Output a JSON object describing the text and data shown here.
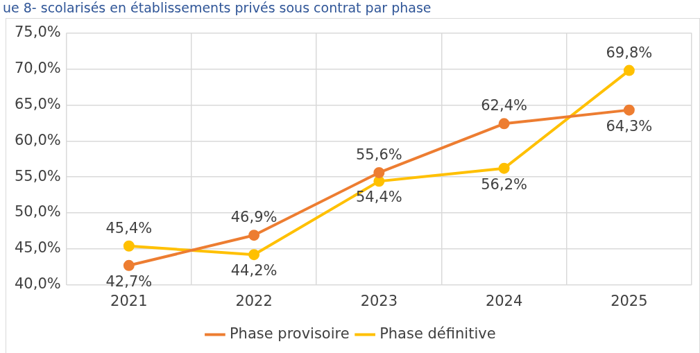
{
  "chart_data": {
    "type": "line",
    "title": "ue 8- scolarisés en établissements privés sous contrat par phase",
    "categories": [
      "2021",
      "2022",
      "2023",
      "2024",
      "2025"
    ],
    "series": [
      {
        "name": "Phase provisoire",
        "color": "#ed7d31",
        "values": [
          42.7,
          46.9,
          55.6,
          62.4,
          64.3
        ],
        "value_labels": [
          "42,7%",
          "46,9%",
          "55,6%",
          "62,4%",
          "64,3%"
        ]
      },
      {
        "name": "Phase définitive",
        "color": "#ffc000",
        "values": [
          45.4,
          44.2,
          54.4,
          56.2,
          69.8
        ],
        "value_labels": [
          "45,4%",
          "44,2%",
          "54,4%",
          "56,2%",
          "69,8%"
        ]
      }
    ],
    "ylim": [
      40,
      75
    ],
    "yticks": [
      {
        "value": 40,
        "label": "40,0%"
      },
      {
        "value": 45,
        "label": "45,0%"
      },
      {
        "value": 50,
        "label": "50,0%"
      },
      {
        "value": 55,
        "label": "55,0%"
      },
      {
        "value": 60,
        "label": "60,0%"
      },
      {
        "value": 65,
        "label": "65,0%"
      },
      {
        "value": 70,
        "label": "70,0%"
      },
      {
        "value": 75,
        "label": "75,0%"
      }
    ],
    "grid": true,
    "legend": "bottom",
    "marker": "circle",
    "line_style": "solid"
  }
}
